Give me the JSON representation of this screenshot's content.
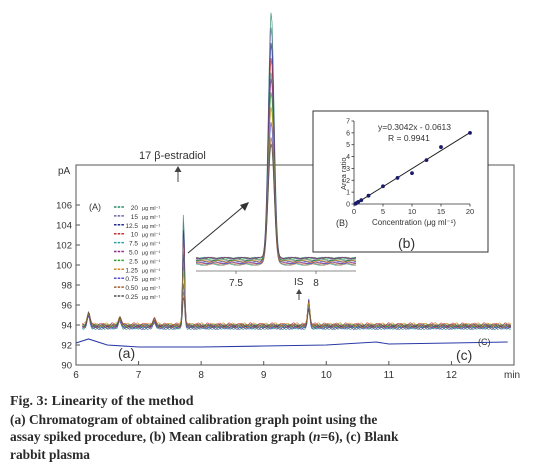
{
  "chart_data": [
    {
      "type": "line",
      "panel": "A",
      "title": "17 β-estradiol",
      "xlabel": "min",
      "ylabel": "pA",
      "xlim": [
        6,
        13
      ],
      "ylim": [
        90,
        110
      ],
      "x_ticks": [
        "6",
        "7",
        "8",
        "9",
        "10",
        "11",
        "12"
      ],
      "y_ticks": [
        "90",
        "92",
        "94",
        "96",
        "98",
        "100",
        "102",
        "104",
        "106"
      ],
      "legend_position": "left",
      "legend_unit": "μg ml⁻¹",
      "legend": [
        {
          "value": "20",
          "color": "#2b8a6a"
        },
        {
          "value": "15",
          "color": "#6a6aa0"
        },
        {
          "value": "12.5",
          "color": "#1c2a8a"
        },
        {
          "value": "10",
          "color": "#c03030"
        },
        {
          "value": "7.5",
          "color": "#2aa0a0"
        },
        {
          "value": "5.0",
          "color": "#8a2a8a"
        },
        {
          "value": "2.5",
          "color": "#30a030"
        },
        {
          "value": "1.25",
          "color": "#c88a20"
        },
        {
          "value": "0.75",
          "color": "#5050d0"
        },
        {
          "value": "0.50",
          "color": "#a06030"
        },
        {
          "value": "0.25",
          "color": "#505050"
        }
      ],
      "peaks": [
        {
          "label": "17 β-estradiol",
          "x": 7.72,
          "y": 106.3
        },
        {
          "label": "IS",
          "x": 9.72,
          "y": 96.3
        }
      ],
      "blank_label": "(a)",
      "blank_trace_label": "(C)",
      "blank_panel_label": "(c)",
      "blank_series": {
        "x": [
          6,
          6.2,
          6.5,
          7,
          8,
          9,
          10,
          10.8,
          11,
          12,
          12.9
        ],
        "y": [
          92.2,
          92.6,
          92.0,
          91.8,
          91.8,
          91.9,
          92.0,
          92.3,
          92.1,
          92.2,
          92.3
        ]
      }
    },
    {
      "type": "line",
      "panel": "inset",
      "description_label": "",
      "xlim": [
        7.25,
        8.25
      ],
      "x_ticks": [
        "7.5",
        "8"
      ],
      "peak_x": 7.72
    },
    {
      "type": "scatter",
      "panel": "(B)",
      "panel_caption": "(b)",
      "equation": "y=0.3042x - 0.0613",
      "r_value": "R = 0.9941",
      "xlabel": "Concentration (μg ml⁻¹)",
      "ylabel": "Area ratio",
      "xlim": [
        0,
        20
      ],
      "ylim": [
        0,
        7
      ],
      "x_ticks": [
        "0",
        "5",
        "10",
        "15",
        "20"
      ],
      "y_ticks": [
        "0",
        "1",
        "2",
        "3",
        "4",
        "5",
        "6",
        "7"
      ],
      "fit": {
        "slope": 0.3042,
        "intercept": -0.0613
      },
      "points": {
        "x": [
          0.25,
          0.5,
          0.75,
          1.25,
          2.5,
          5,
          7.5,
          10,
          12.5,
          15,
          20
        ],
        "y": [
          0.02,
          0.1,
          0.18,
          0.32,
          0.7,
          1.5,
          2.2,
          2.6,
          3.7,
          4.8,
          6.0
        ]
      }
    }
  ],
  "caption": {
    "title": "Fig. 3: Linearity of the method",
    "line1": "(a) Chromatogram of obtained calibration graph point using the",
    "line2": "assay spiked procedure, (b) Mean calibration graph (",
    "n_italic": "n",
    "line2_end": "=6), (c) Blank",
    "line3": "rabbit plasma"
  }
}
